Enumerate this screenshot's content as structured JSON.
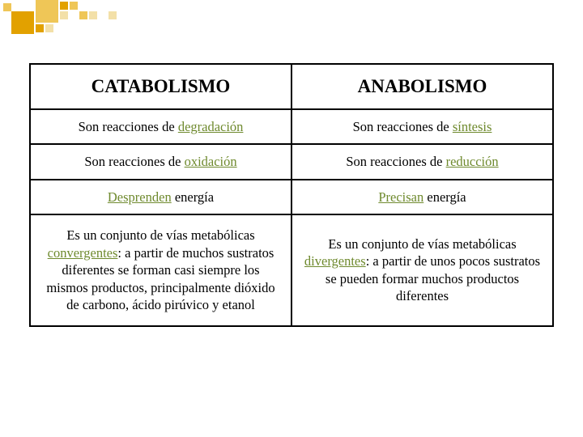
{
  "decor": {
    "accent": "#e2a100",
    "accent_light": "#efc657",
    "accent_pale": "#f3e0a8",
    "big_size": 28,
    "small_size": 10
  },
  "table": {
    "type": "table",
    "border_color": "#000000",
    "background_color": "#ffffff",
    "header_fontsize": 23,
    "body_fontsize": 16.5,
    "keyword_color": "#6f8a2e",
    "columns": [
      "CATABOLISMO",
      "ANABOLISMO"
    ],
    "rows": [
      {
        "left": {
          "prefix": "Son reacciones de ",
          "keyword": "degradación",
          "suffix": ""
        },
        "right": {
          "prefix": "Son reacciones de ",
          "keyword": "síntesis",
          "suffix": ""
        }
      },
      {
        "left": {
          "prefix": "Son reacciones de ",
          "keyword": "oxidación",
          "suffix": ""
        },
        "right": {
          "prefix": "Son reacciones de ",
          "keyword": "reducción",
          "suffix": ""
        }
      },
      {
        "left": {
          "prefix": "",
          "keyword": "Desprenden",
          "suffix": " energía"
        },
        "right": {
          "prefix": "",
          "keyword": "Precisan",
          "suffix": " energía"
        }
      },
      {
        "left": {
          "prefix": "Es un conjunto de vías metabólicas ",
          "keyword": "convergentes",
          "suffix": ": a partir de muchos sustratos diferentes se forman casi siempre los mismos productos, principalmente dióxido de carbono, ácido pirúvico y etanol"
        },
        "right": {
          "prefix": "Es un conjunto de vías metabólicas ",
          "keyword": "divergentes",
          "suffix": ": a partir de unos pocos sustratos se pueden formar muchos productos diferentes"
        }
      }
    ]
  }
}
